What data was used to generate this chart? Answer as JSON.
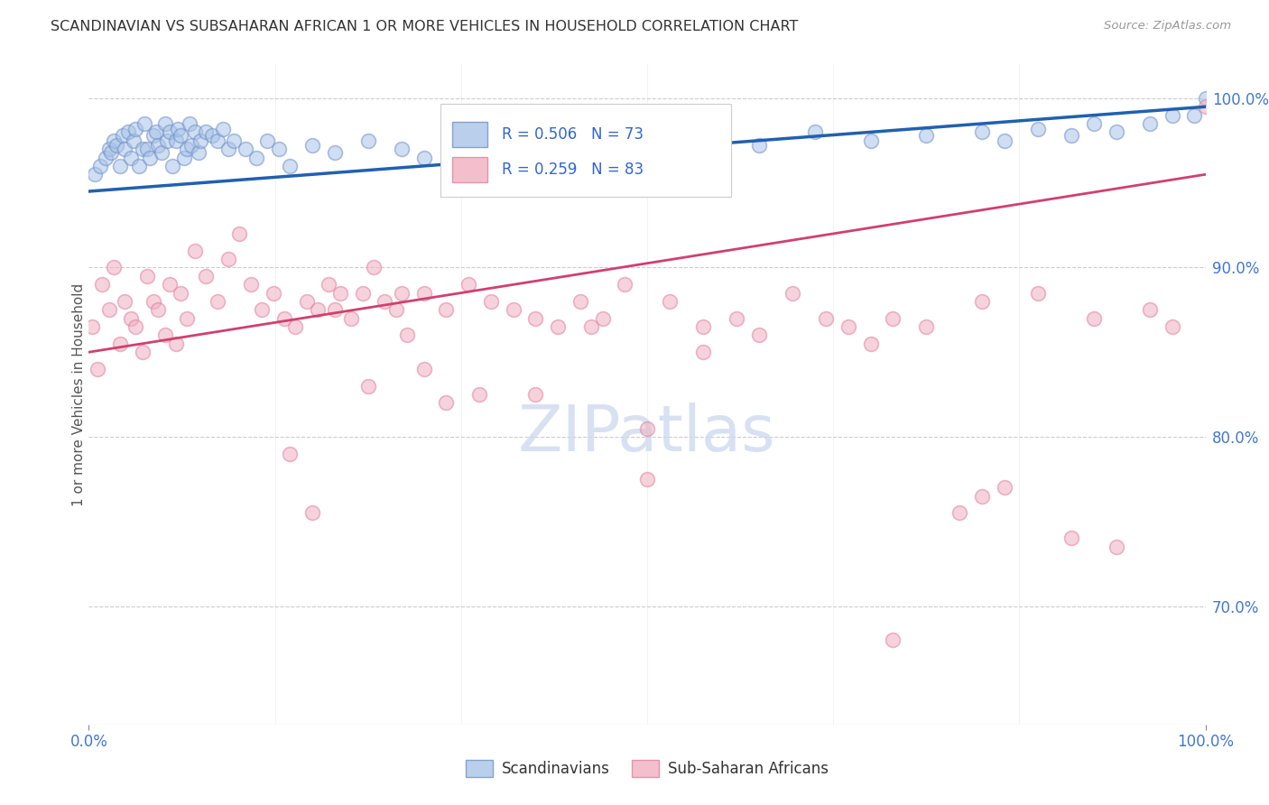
{
  "title": "SCANDINAVIAN VS SUBSAHARAN AFRICAN 1 OR MORE VEHICLES IN HOUSEHOLD CORRELATION CHART",
  "source": "Source: ZipAtlas.com",
  "ylabel": "1 or more Vehicles in Household",
  "legend1_label": "Scandinavians",
  "legend2_label": "Sub-Saharan Africans",
  "r_blue": 0.506,
  "n_blue": 73,
  "r_pink": 0.259,
  "n_pink": 83,
  "blue_color": "#a8c4e8",
  "pink_color": "#f0b0c0",
  "line_blue_color": "#2060b0",
  "line_pink_color": "#d04070",
  "blue_edge": "#7090c8",
  "pink_edge": "#e080a0",
  "ymin": 63.0,
  "ymax": 102.0,
  "xmin": 0.0,
  "xmax": 100.0,
  "ytick_vals": [
    70,
    80,
    90,
    100
  ],
  "ytick_labels": [
    "70.0%",
    "80.0%",
    "90.0%",
    "100.0%"
  ],
  "blue_line_start_y": 94.5,
  "blue_line_end_y": 99.5,
  "pink_line_start_y": 85.0,
  "pink_line_end_y": 95.5,
  "watermark_text": "ZIPatlas",
  "scandinavian_x": [
    0.5,
    1.0,
    1.5,
    1.8,
    2.0,
    2.2,
    2.5,
    2.8,
    3.0,
    3.2,
    3.5,
    3.8,
    4.0,
    4.2,
    4.5,
    4.8,
    5.0,
    5.2,
    5.5,
    5.8,
    6.0,
    6.2,
    6.5,
    6.8,
    7.0,
    7.2,
    7.5,
    7.8,
    8.0,
    8.2,
    8.5,
    8.8,
    9.0,
    9.2,
    9.5,
    9.8,
    10.0,
    10.5,
    11.0,
    11.5,
    12.0,
    12.5,
    13.0,
    14.0,
    15.0,
    16.0,
    17.0,
    18.0,
    20.0,
    22.0,
    25.0,
    28.0,
    30.0,
    35.0,
    38.0,
    40.0,
    45.0,
    50.0,
    55.0,
    60.0,
    65.0,
    70.0,
    75.0,
    80.0,
    82.0,
    85.0,
    88.0,
    90.0,
    92.0,
    95.0,
    97.0,
    99.0,
    100.0
  ],
  "scandinavian_y": [
    95.5,
    96.0,
    96.5,
    97.0,
    96.8,
    97.5,
    97.2,
    96.0,
    97.8,
    97.0,
    98.0,
    96.5,
    97.5,
    98.2,
    96.0,
    97.0,
    98.5,
    97.0,
    96.5,
    97.8,
    98.0,
    97.2,
    96.8,
    98.5,
    97.5,
    98.0,
    96.0,
    97.5,
    98.2,
    97.8,
    96.5,
    97.0,
    98.5,
    97.2,
    98.0,
    96.8,
    97.5,
    98.0,
    97.8,
    97.5,
    98.2,
    97.0,
    97.5,
    97.0,
    96.5,
    97.5,
    97.0,
    96.0,
    97.2,
    96.8,
    97.5,
    97.0,
    96.5,
    97.8,
    97.0,
    96.5,
    97.5,
    97.8,
    97.5,
    97.2,
    98.0,
    97.5,
    97.8,
    98.0,
    97.5,
    98.2,
    97.8,
    98.5,
    98.0,
    98.5,
    99.0,
    99.0,
    100.0
  ],
  "subsaharan_x": [
    0.3,
    0.8,
    1.2,
    1.8,
    2.2,
    2.8,
    3.2,
    3.8,
    4.2,
    4.8,
    5.2,
    5.8,
    6.2,
    6.8,
    7.2,
    7.8,
    8.2,
    8.8,
    9.5,
    10.5,
    11.5,
    12.5,
    13.5,
    14.5,
    15.5,
    16.5,
    17.5,
    18.5,
    19.5,
    20.5,
    21.5,
    22.5,
    23.5,
    24.5,
    25.5,
    26.5,
    27.5,
    28.5,
    30.0,
    32.0,
    34.0,
    36.0,
    38.0,
    40.0,
    42.0,
    44.0,
    46.0,
    48.0,
    50.0,
    52.0,
    55.0,
    58.0,
    60.0,
    63.0,
    66.0,
    68.0,
    70.0,
    72.0,
    75.0,
    78.0,
    80.0,
    82.0,
    85.0,
    88.0,
    90.0,
    92.0,
    95.0,
    97.0,
    100.0,
    25.0,
    30.0,
    35.0,
    20.0,
    22.0,
    18.0,
    28.0,
    32.0,
    40.0,
    45.0,
    50.0,
    55.0,
    72.0,
    80.0
  ],
  "subsaharan_y": [
    86.5,
    84.0,
    89.0,
    87.5,
    90.0,
    85.5,
    88.0,
    87.0,
    86.5,
    85.0,
    89.5,
    88.0,
    87.5,
    86.0,
    89.0,
    85.5,
    88.5,
    87.0,
    91.0,
    89.5,
    88.0,
    90.5,
    92.0,
    89.0,
    87.5,
    88.5,
    87.0,
    86.5,
    88.0,
    87.5,
    89.0,
    88.5,
    87.0,
    88.5,
    90.0,
    88.0,
    87.5,
    86.0,
    88.5,
    87.5,
    89.0,
    88.0,
    87.5,
    87.0,
    86.5,
    88.0,
    87.0,
    89.0,
    80.5,
    88.0,
    86.5,
    87.0,
    86.0,
    88.5,
    87.0,
    86.5,
    85.5,
    87.0,
    86.5,
    75.5,
    88.0,
    77.0,
    88.5,
    74.0,
    87.0,
    73.5,
    87.5,
    86.5,
    99.5,
    83.0,
    84.0,
    82.5,
    75.5,
    87.5,
    79.0,
    88.5,
    82.0,
    82.5,
    86.5,
    77.5,
    85.0,
    68.0,
    76.5
  ]
}
